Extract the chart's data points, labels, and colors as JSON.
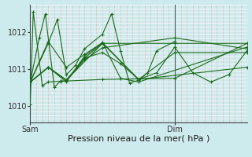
{
  "bg_color": "#cdeaed",
  "grid_color_h": "#ffffff",
  "grid_color_v_red": "#e8b8b8",
  "grid_color_v_main": "#ffffff",
  "line_color": "#1a6b1a",
  "marker_color": "#1a6b1a",
  "xlabel": "Pression niveau de la mer( hPa )",
  "xlabel_fontsize": 8,
  "yticks": [
    1010,
    1011,
    1012
  ],
  "ylim": [
    1009.55,
    1012.75
  ],
  "xlim": [
    0,
    36
  ],
  "sam_x": 0,
  "dim_x": 24,
  "vline_dim_x": 24,
  "x_grid_step": 1,
  "series": [
    [
      0,
      1010.05,
      0.5,
      1012.55,
      2,
      1010.55,
      3,
      1010.65,
      5,
      1010.67,
      12,
      1010.72,
      24,
      1010.75,
      36,
      1011.7
    ],
    [
      0,
      1010.65,
      1.5,
      1011.85,
      2.5,
      1012.5,
      4,
      1010.5,
      5,
      1010.68,
      6,
      1010.68,
      9,
      1011.3,
      12,
      1011.45,
      15,
      1011.15,
      18,
      1010.72,
      21,
      1010.9,
      24,
      1011.6,
      27,
      1010.9,
      30,
      1010.65,
      33,
      1010.85,
      36,
      1011.5
    ],
    [
      0,
      1010.65,
      3,
      1011.75,
      6,
      1011.05,
      9,
      1011.4,
      12,
      1011.72,
      18,
      1010.72,
      24,
      1011.45,
      36,
      1011.45
    ],
    [
      0,
      1010.65,
      3,
      1011.05,
      6,
      1010.7,
      9,
      1011.3,
      12,
      1011.7,
      18,
      1010.72,
      36,
      1011.05
    ],
    [
      0,
      1010.65,
      3,
      1011.05,
      6,
      1010.65,
      9,
      1011.35,
      12,
      1011.72,
      15,
      1010.75,
      18,
      1010.65,
      36,
      1011.6
    ],
    [
      0,
      1010.65,
      3,
      1011.05,
      6,
      1010.7,
      9,
      1011.25,
      12,
      1011.58,
      24,
      1011.85,
      36,
      1011.55
    ],
    [
      0,
      1010.65,
      3,
      1011.05,
      6,
      1010.7,
      12,
      1011.7,
      24,
      1011.7,
      36,
      1011.7
    ],
    [
      0,
      1010.65,
      3,
      1011.7,
      4.5,
      1012.35,
      6,
      1010.85,
      7.5,
      1011.1,
      9,
      1011.55,
      12,
      1011.95,
      13.5,
      1012.5,
      15,
      1011.5,
      16.5,
      1010.62,
      18,
      1010.7,
      19.5,
      1010.9,
      21,
      1011.5,
      24,
      1011.75
    ]
  ]
}
